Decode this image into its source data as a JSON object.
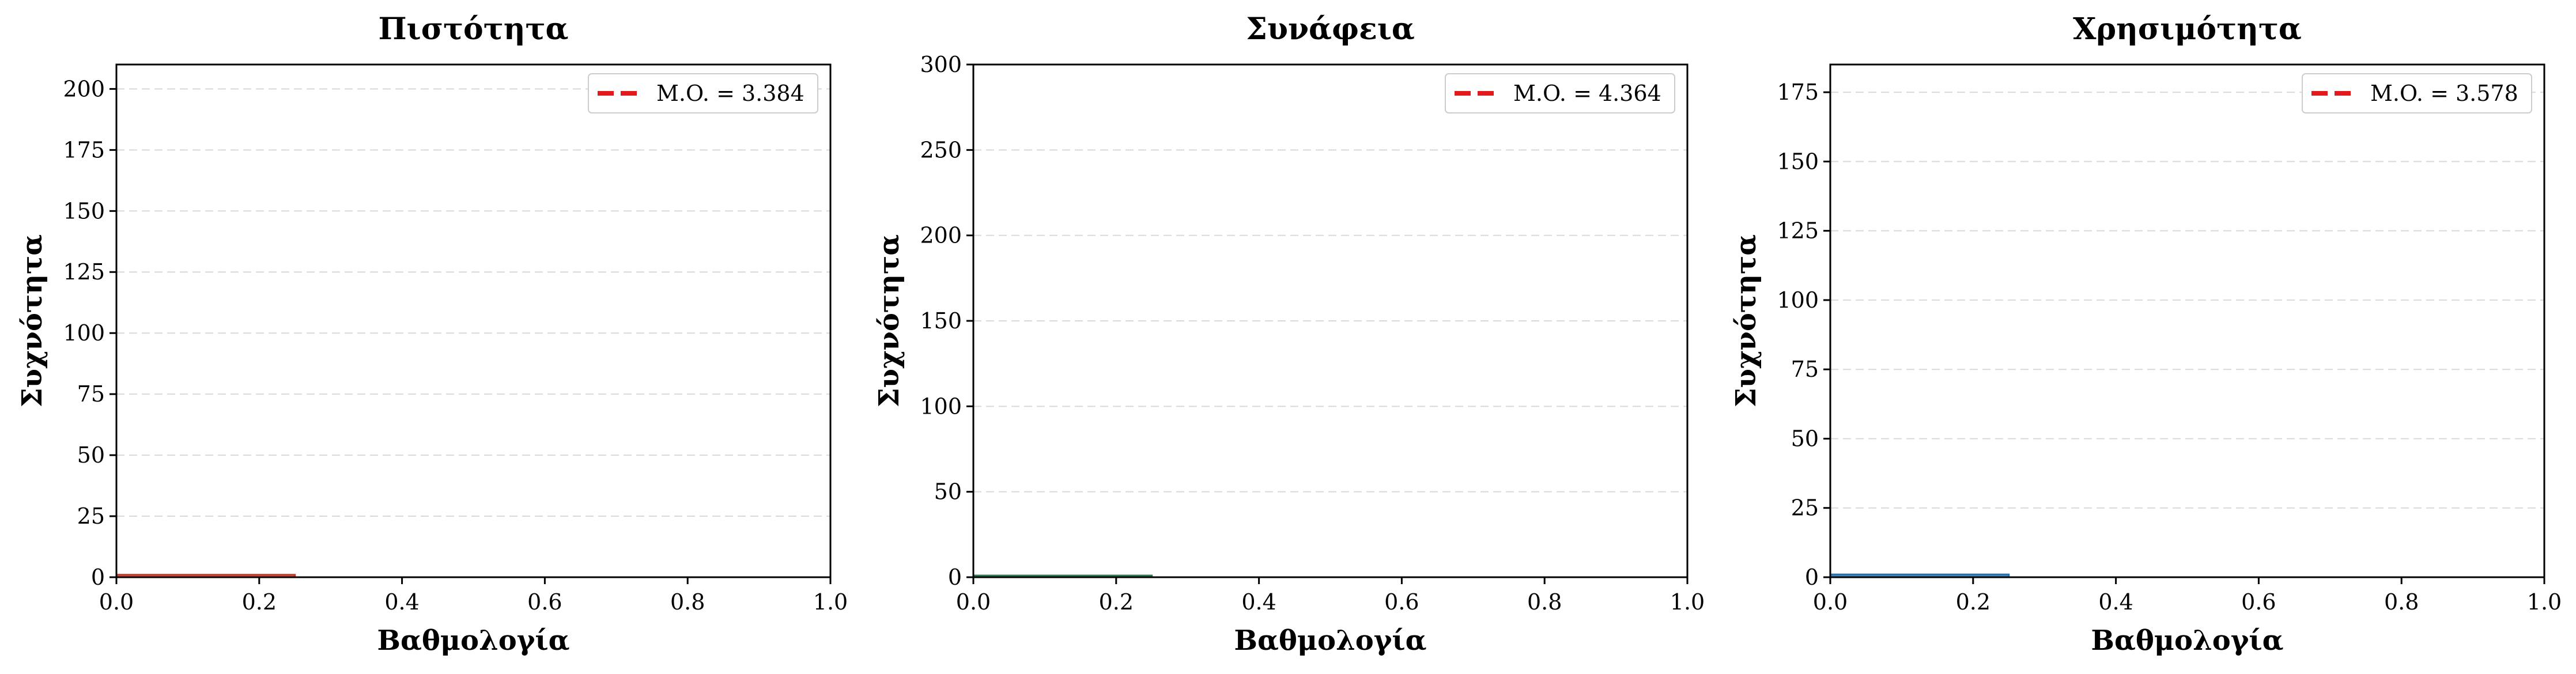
{
  "chart_data": [
    {
      "type": "bar",
      "title": "Πιστότητα",
      "xlabel": "Βαθμολογία",
      "ylabel": "Συχνότητα",
      "xlim": [
        0,
        1
      ],
      "ylim": [
        0,
        210
      ],
      "xticks": [
        0.0,
        0.2,
        0.4,
        0.6,
        0.8,
        1.0
      ],
      "xtick_labels": [
        "0.0",
        "0.2",
        "0.4",
        "0.6",
        "0.8",
        "1.0"
      ],
      "yticks": [
        0,
        25,
        50,
        75,
        100,
        125,
        150,
        175,
        200
      ],
      "ytick_labels": [
        "0",
        "25",
        "50",
        "75",
        "100",
        "125",
        "150",
        "175",
        "200"
      ],
      "grid": "y-dashed",
      "legend_position": "top-right",
      "legend_label": "M.O. = 3.384",
      "mean": 3.384,
      "mean_color": "#e31a1c",
      "bar_color": "#c0392b",
      "bins": [
        {
          "x0": 0.0,
          "x1": 0.25,
          "count": 1
        }
      ]
    },
    {
      "type": "bar",
      "title": "Συνάφεια",
      "xlabel": "Βαθμολογία",
      "ylabel": "Συχνότητα",
      "xlim": [
        0,
        1
      ],
      "ylim": [
        0,
        300
      ],
      "xticks": [
        0.0,
        0.2,
        0.4,
        0.6,
        0.8,
        1.0
      ],
      "xtick_labels": [
        "0.0",
        "0.2",
        "0.4",
        "0.6",
        "0.8",
        "1.0"
      ],
      "yticks": [
        0,
        50,
        100,
        150,
        200,
        250,
        300
      ],
      "ytick_labels": [
        "0",
        "50",
        "100",
        "150",
        "200",
        "250",
        "300"
      ],
      "grid": "y-dashed",
      "legend_position": "top-right",
      "legend_label": "M.O. = 4.364",
      "mean": 4.364,
      "mean_color": "#e31a1c",
      "bar_color": "#2e7d4f",
      "bins": [
        {
          "x0": 0.0,
          "x1": 0.25,
          "count": 1
        }
      ]
    },
    {
      "type": "bar",
      "title": "Χρησιμότητα",
      "xlabel": "Βαθμολογία",
      "ylabel": "Συχνότητα",
      "xlim": [
        0,
        1
      ],
      "ylim": [
        0,
        185
      ],
      "xticks": [
        0.0,
        0.2,
        0.4,
        0.6,
        0.8,
        1.0
      ],
      "xtick_labels": [
        "0.0",
        "0.2",
        "0.4",
        "0.6",
        "0.8",
        "1.0"
      ],
      "yticks": [
        0,
        25,
        50,
        75,
        100,
        125,
        150,
        175
      ],
      "ytick_labels": [
        "0",
        "25",
        "50",
        "75",
        "100",
        "125",
        "150",
        "175"
      ],
      "grid": "y-dashed",
      "legend_position": "top-right",
      "legend_label": "M.O. = 3.578",
      "mean": 3.578,
      "mean_color": "#e31a1c",
      "bar_color": "#2c6fa8",
      "bins": [
        {
          "x0": 0.0,
          "x1": 0.25,
          "count": 1
        }
      ]
    }
  ]
}
